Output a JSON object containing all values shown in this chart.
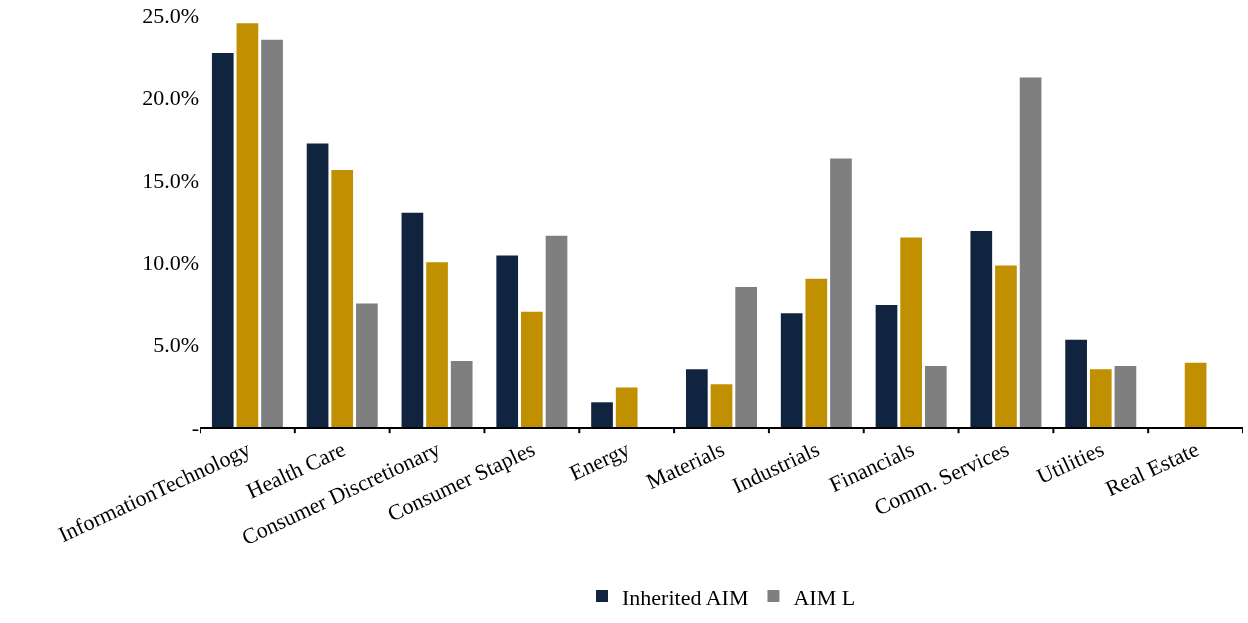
{
  "chart_data": {
    "type": "bar",
    "categories": [
      "InformationTechnology",
      "Health Care",
      "Consumer Discretionary",
      "Consumer Staples",
      "Energy",
      "Materials",
      "Industrials",
      "Financials",
      "Comm. Services",
      "Utilities",
      "Real Estate"
    ],
    "series": [
      {
        "name": "Inherited AIM",
        "color": "#10233f",
        "values": [
          22.7,
          17.2,
          13.0,
          10.4,
          1.5,
          3.5,
          6.9,
          7.4,
          11.9,
          5.3,
          null
        ]
      },
      {
        "color": "#c09000",
        "values": [
          24.5,
          15.6,
          10.0,
          7.0,
          2.4,
          2.6,
          9.0,
          11.5,
          9.8,
          3.5,
          3.9
        ]
      },
      {
        "name": "AIM L",
        "color": "#7f7f7f",
        "values": [
          23.5,
          7.5,
          4.0,
          11.6,
          null,
          8.5,
          16.3,
          3.7,
          21.2,
          3.7,
          null
        ]
      }
    ],
    "ylim": [
      0,
      25
    ],
    "yticks": [
      {
        "value": 0,
        "label": "-"
      },
      {
        "value": 5,
        "label": "5.0%"
      },
      {
        "value": 10,
        "label": "10.0%"
      },
      {
        "value": 15,
        "label": "15.0%"
      },
      {
        "value": 20,
        "label": "20.0%"
      },
      {
        "value": 25,
        "label": "25.0%"
      }
    ],
    "grid": false,
    "legend": "bottom"
  }
}
